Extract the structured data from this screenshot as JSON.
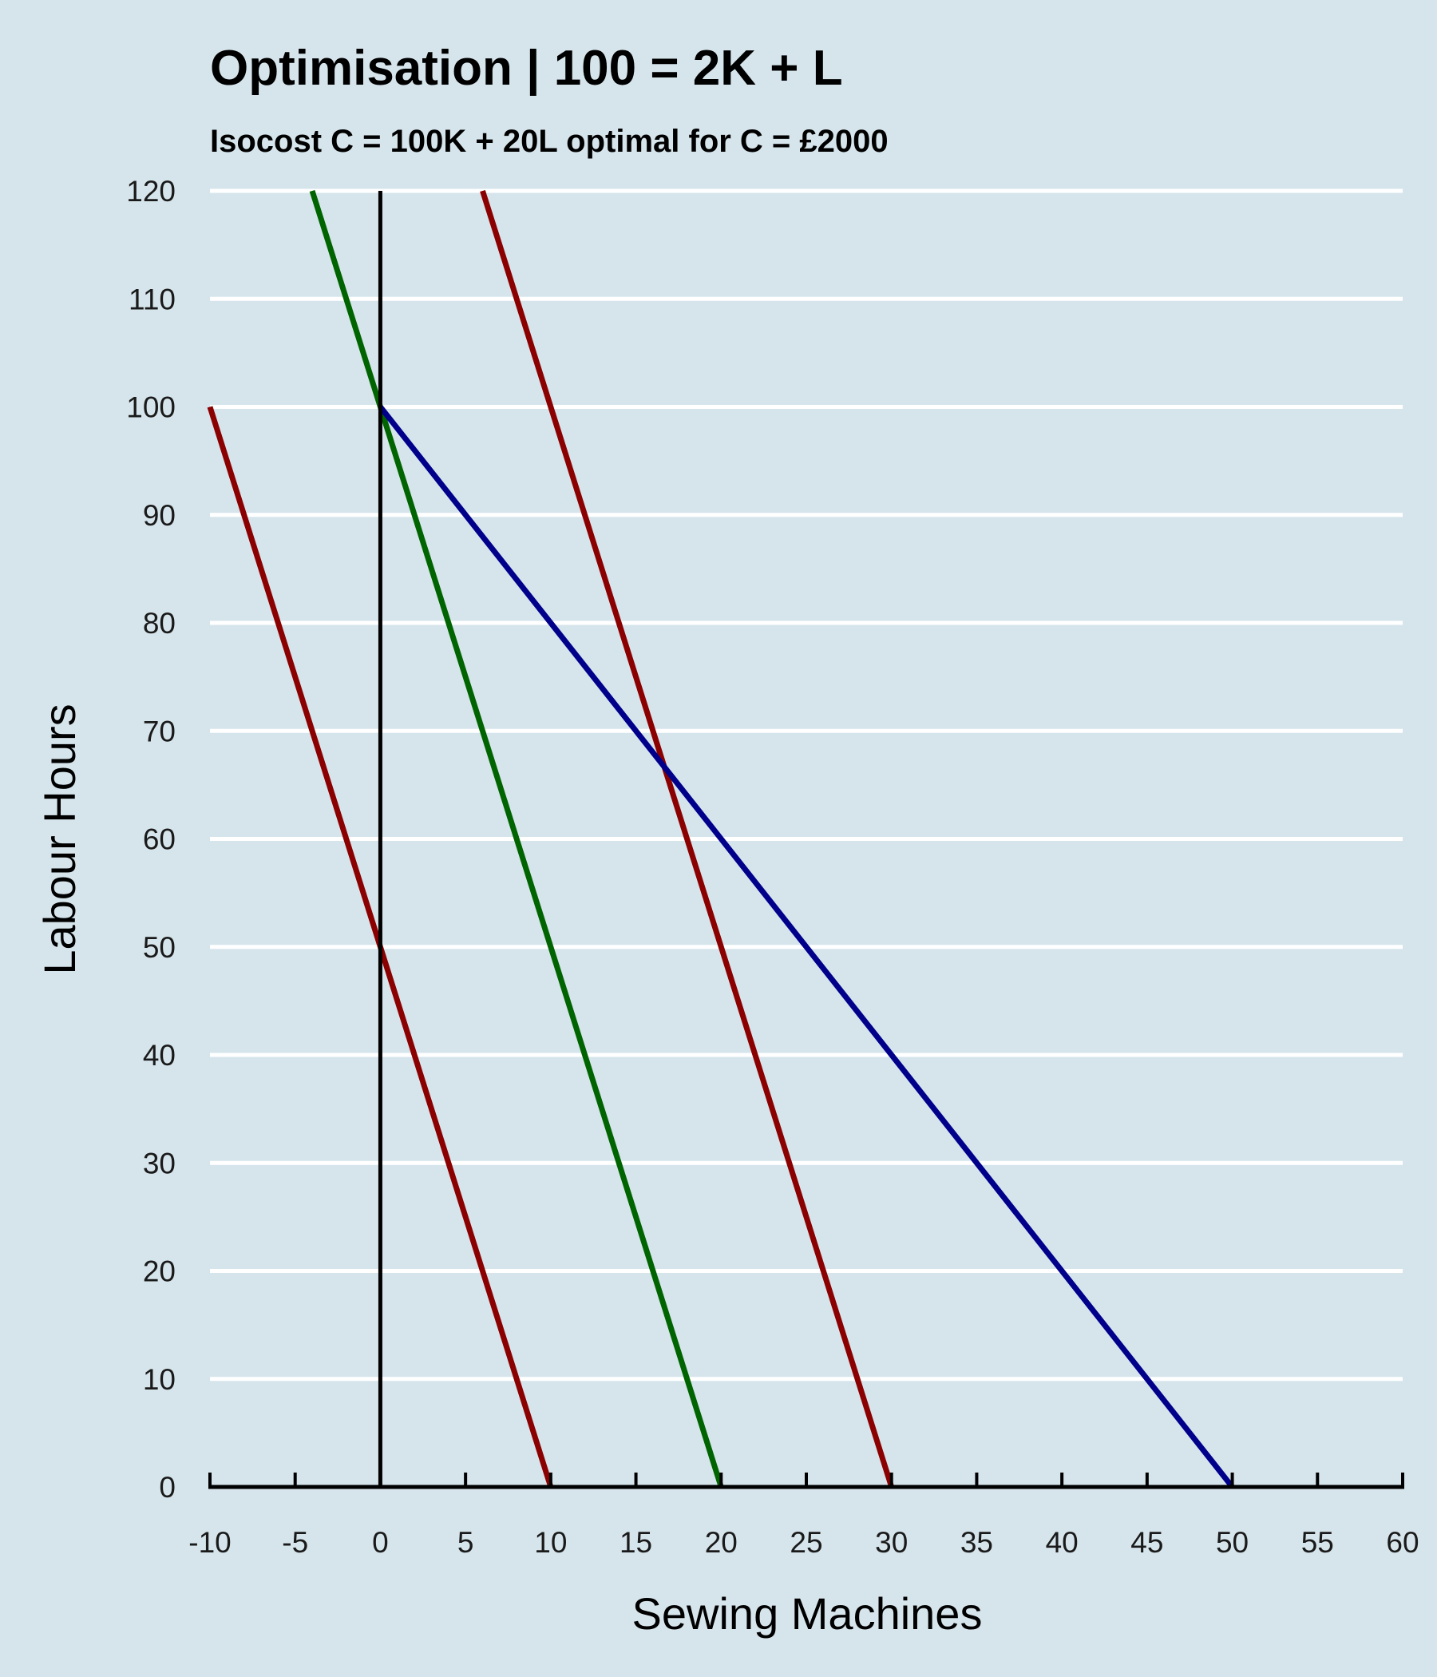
{
  "chart_data": {
    "type": "line",
    "title": "Optimisation | 100 = 2K + L",
    "subtitle": "Isocost C = 100K + 20L optimal for C = £2000",
    "xlabel": "Sewing Machines",
    "ylabel": "Labour Hours",
    "xlim": [
      -10,
      60
    ],
    "ylim": [
      0,
      120
    ],
    "x_ticks": [
      -10,
      -5,
      0,
      5,
      10,
      15,
      20,
      25,
      30,
      35,
      40,
      45,
      50,
      55,
      60
    ],
    "y_ticks": [
      0,
      10,
      20,
      30,
      40,
      50,
      60,
      70,
      80,
      90,
      100,
      110,
      120
    ],
    "grid": "horizontal",
    "legend": "none",
    "series": [
      {
        "color": "#8b0000",
        "points": [
          [
            -10,
            100
          ],
          [
            10,
            0
          ]
        ]
      },
      {
        "color": "#006400",
        "points": [
          [
            -4,
            120
          ],
          [
            20,
            0
          ]
        ]
      },
      {
        "color": "#8b0000",
        "points": [
          [
            6,
            120
          ],
          [
            30,
            0
          ]
        ]
      },
      {
        "color": "#00008b",
        "points": [
          [
            0,
            100
          ],
          [
            50,
            0
          ]
        ]
      }
    ],
    "colors": {
      "background": "#d6e5ec",
      "grid": "#ffffff",
      "axis": "#000000"
    }
  }
}
